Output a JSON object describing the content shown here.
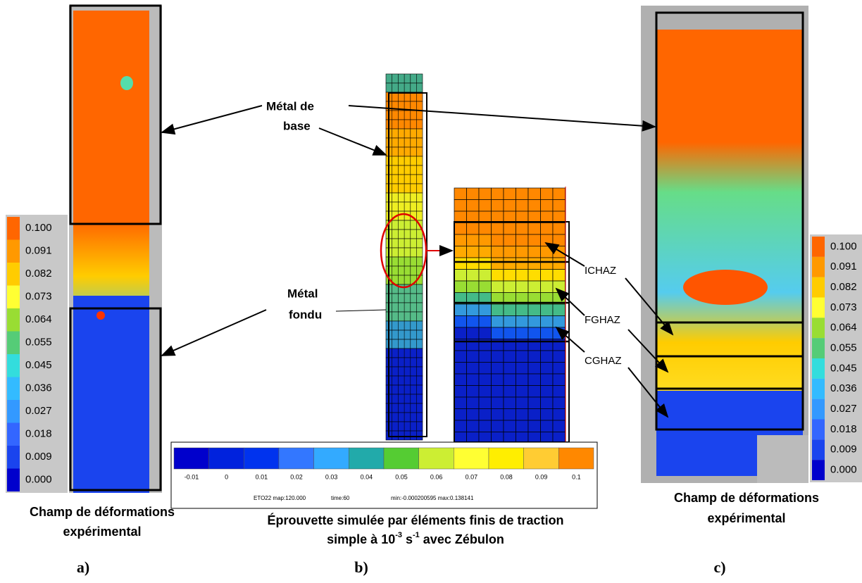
{
  "panel_a": {
    "colorbar_labels": [
      "0.100",
      "0.091",
      "0.082",
      "0.073",
      "0.064",
      "0.055",
      "0.045",
      "0.036",
      "0.027",
      "0.018",
      "0.009",
      "0.000"
    ],
    "caption": [
      "Champ de déformations",
      "expérimental"
    ],
    "letter": "a)"
  },
  "panel_b": {
    "base_metal": [
      "Métal de",
      "base"
    ],
    "weld_metal": [
      "Métal",
      "fondu"
    ],
    "zones": [
      "ICHAZ",
      "FGHAZ",
      "CGHAZ"
    ],
    "colorbar_ticks": [
      "-0.01",
      "0",
      "0.01",
      "0.02",
      "0.03",
      "0.04",
      "0.05",
      "0.06",
      "0.07",
      "0.08",
      "0.09",
      "0.1"
    ],
    "footer": [
      "ETO22 map:120.000",
      "time:60",
      "min:-0.000200595 max:0.138141"
    ],
    "caption": {
      "line1": "Éprouvette simulée par éléments finis de traction",
      "line2": [
        "simple à 10",
        "-3",
        " s",
        "-1",
        " avec Zébulon"
      ]
    },
    "letter": "b)"
  },
  "panel_c": {
    "colorbar_labels": [
      "0.100",
      "0.091",
      "0.082",
      "0.073",
      "0.064",
      "0.055",
      "0.045",
      "0.036",
      "0.027",
      "0.018",
      "0.009",
      "0.000"
    ],
    "caption": [
      "Champ de déformations",
      "expérimental"
    ],
    "letter": "c)"
  }
}
